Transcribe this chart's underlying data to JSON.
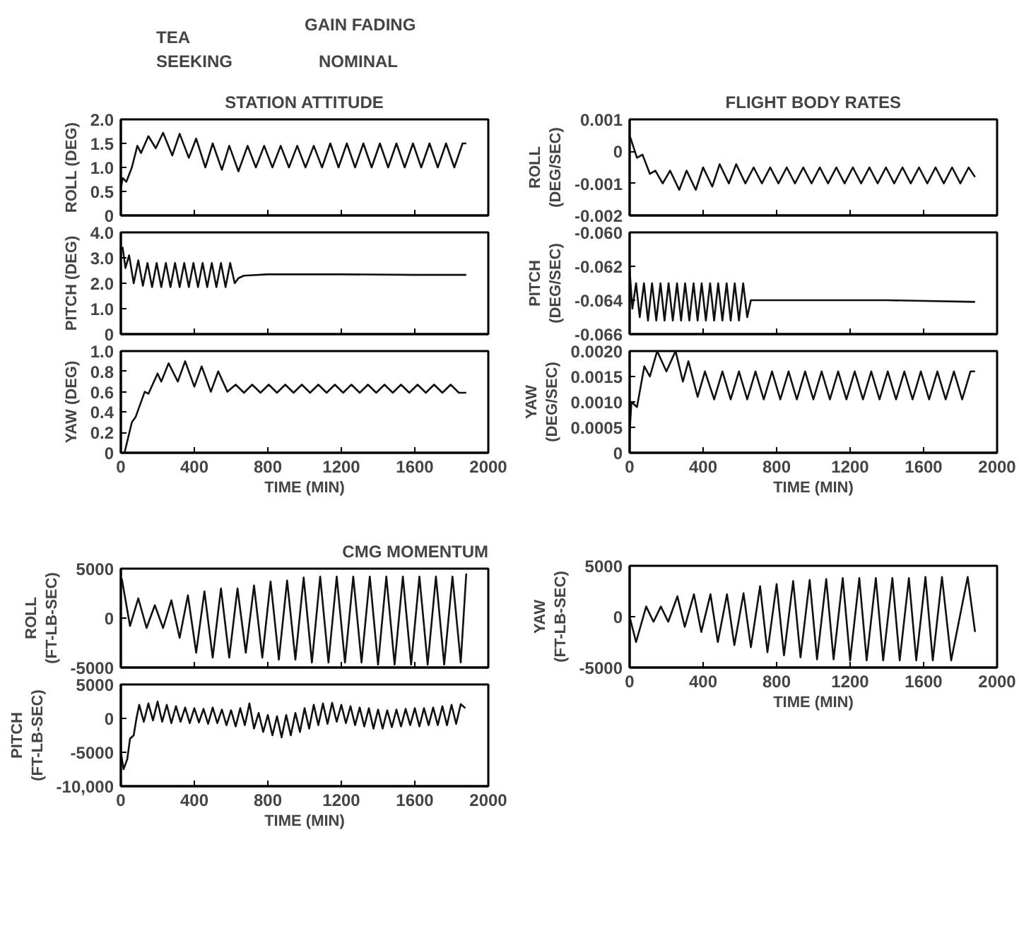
{
  "chart_data": [
    {
      "type": "line",
      "title": "STATION ATTITUDE",
      "ylabel": "ROLL (DEG)",
      "annotations": [
        "TEA\nSEEKING",
        "GAIN FADING",
        "NOMINAL"
      ],
      "xlim": [
        0,
        2000
      ],
      "xticks": [
        0,
        400,
        800,
        1200,
        1600,
        2000
      ],
      "ylim": [
        0,
        2
      ],
      "yticks": [
        0,
        0.5,
        {
          "value": 1,
          "label": "1.0"
        },
        1.5,
        {
          "value": 2,
          "label": "2.0"
        }
      ],
      "tick_labels": "y",
      "grid": false,
      "x": [
        0,
        10,
        30,
        60,
        90,
        110,
        150,
        190,
        230,
        280,
        320,
        370,
        410,
        460,
        500,
        550,
        590,
        640,
        690,
        735,
        780,
        825,
        870,
        915,
        960,
        1005,
        1050,
        1095,
        1140,
        1185,
        1230,
        1275,
        1320,
        1365,
        1410,
        1455,
        1500,
        1545,
        1590,
        1635,
        1680,
        1725,
        1770,
        1815,
        1860,
        1880
      ],
      "series": [
        {
          "color": "#111111",
          "values": [
            0.55,
            0.78,
            0.7,
            1.0,
            1.45,
            1.3,
            1.65,
            1.4,
            1.72,
            1.25,
            1.7,
            1.2,
            1.6,
            1.0,
            1.5,
            0.95,
            1.45,
            0.92,
            1.45,
            1.0,
            1.45,
            1.0,
            1.45,
            1.0,
            1.45,
            1.0,
            1.45,
            1.0,
            1.5,
            1.0,
            1.5,
            1.0,
            1.5,
            1.0,
            1.5,
            1.0,
            1.5,
            1.0,
            1.5,
            1.0,
            1.5,
            1.0,
            1.5,
            1.0,
            1.5,
            1.5
          ]
        }
      ]
    },
    {
      "type": "line",
      "ylabel": "PITCH (DEG)",
      "xlim": [
        0,
        2000
      ],
      "xticks": [
        0,
        400,
        800,
        1200,
        1600,
        2000
      ],
      "ylim": [
        0,
        4
      ],
      "yticks": [
        0,
        {
          "value": 1,
          "label": "1.0"
        },
        {
          "value": 2,
          "label": "2.0"
        },
        {
          "value": 3,
          "label": "3.0"
        },
        {
          "value": 4,
          "label": "4.0"
        }
      ],
      "tick_labels": "y",
      "x": [
        0,
        10,
        25,
        45,
        70,
        95,
        120,
        145,
        170,
        195,
        220,
        245,
        270,
        295,
        320,
        345,
        370,
        395,
        420,
        445,
        470,
        495,
        520,
        545,
        570,
        595,
        620,
        640,
        670,
        800,
        1200,
        1600,
        1880
      ],
      "series": [
        {
          "color": "#111111",
          "values": [
            3.3,
            3.4,
            2.6,
            3.1,
            2.0,
            2.9,
            1.9,
            2.8,
            1.85,
            2.8,
            1.85,
            2.8,
            1.85,
            2.8,
            1.85,
            2.8,
            1.85,
            2.8,
            1.85,
            2.8,
            1.85,
            2.8,
            1.85,
            2.8,
            1.85,
            2.8,
            2.0,
            2.2,
            2.3,
            2.35,
            2.35,
            2.33,
            2.33
          ]
        }
      ]
    },
    {
      "type": "line",
      "ylabel": "YAW (DEG)",
      "xlabel": "TIME (MIN)",
      "xlim": [
        0,
        2000
      ],
      "xticks": [
        0,
        400,
        800,
        1200,
        1600,
        2000
      ],
      "ylim": [
        0,
        1
      ],
      "yticks": [
        0,
        0.2,
        0.4,
        0.6,
        0.8,
        {
          "value": 1,
          "label": "1.0"
        }
      ],
      "x": [
        20,
        60,
        80,
        130,
        150,
        200,
        220,
        260,
        310,
        350,
        400,
        440,
        490,
        530,
        580,
        625,
        670,
        715,
        760,
        805,
        850,
        895,
        940,
        985,
        1030,
        1075,
        1120,
        1165,
        1210,
        1255,
        1300,
        1345,
        1390,
        1435,
        1480,
        1525,
        1570,
        1615,
        1660,
        1705,
        1750,
        1795,
        1840,
        1880
      ],
      "series": [
        {
          "color": "#111111",
          "values": [
            0,
            0.3,
            0.35,
            0.6,
            0.58,
            0.78,
            0.7,
            0.88,
            0.7,
            0.9,
            0.65,
            0.85,
            0.6,
            0.8,
            0.6,
            0.67,
            0.59,
            0.67,
            0.59,
            0.67,
            0.59,
            0.67,
            0.59,
            0.67,
            0.59,
            0.67,
            0.59,
            0.67,
            0.59,
            0.67,
            0.59,
            0.67,
            0.59,
            0.67,
            0.59,
            0.67,
            0.59,
            0.67,
            0.59,
            0.67,
            0.59,
            0.67,
            0.59,
            0.59
          ]
        }
      ]
    },
    {
      "type": "line",
      "title": "FLIGHT BODY RATES",
      "ylabel": "ROLL\n(DEG/SEC)",
      "xlim": [
        0,
        2000
      ],
      "xticks": [
        0,
        400,
        800,
        1200,
        1600,
        2000
      ],
      "ylim": [
        -0.002,
        0.001
      ],
      "yticks": [
        0.001,
        0,
        -0.001,
        -0.002
      ],
      "tick_labels": "y",
      "x": [
        0,
        40,
        70,
        110,
        140,
        180,
        220,
        270,
        310,
        360,
        400,
        450,
        490,
        540,
        580,
        630,
        675,
        720,
        765,
        810,
        855,
        900,
        945,
        990,
        1035,
        1080,
        1125,
        1170,
        1215,
        1260,
        1305,
        1350,
        1395,
        1440,
        1485,
        1530,
        1575,
        1620,
        1665,
        1710,
        1755,
        1800,
        1845,
        1880
      ],
      "series": [
        {
          "color": "#111111",
          "values": [
            0.0005,
            -0.0002,
            -0.0001,
            -0.0007,
            -0.0006,
            -0.001,
            -0.0006,
            -0.0012,
            -0.0006,
            -0.0012,
            -0.0005,
            -0.0011,
            -0.0004,
            -0.001,
            -0.0004,
            -0.001,
            -0.0005,
            -0.001,
            -0.0005,
            -0.001,
            -0.0005,
            -0.001,
            -0.0005,
            -0.001,
            -0.0005,
            -0.001,
            -0.0005,
            -0.001,
            -0.0005,
            -0.001,
            -0.0005,
            -0.001,
            -0.0005,
            -0.001,
            -0.0005,
            -0.001,
            -0.0005,
            -0.001,
            -0.0005,
            -0.001,
            -0.0005,
            -0.001,
            -0.0005,
            -0.0008
          ]
        }
      ]
    },
    {
      "type": "line",
      "ylabel": "PITCH\n(DEG/SEC)",
      "xlim": [
        0,
        2000
      ],
      "xticks": [
        0,
        400,
        800,
        1200,
        1600,
        2000
      ],
      "ylim": [
        -0.066,
        -0.06
      ],
      "yticks": [
        {
          "value": -0.06,
          "label": "-0.060"
        },
        -0.062,
        -0.064,
        -0.066
      ],
      "tick_labels": "y",
      "x": [
        0,
        15,
        35,
        55,
        78,
        100,
        122,
        145,
        168,
        190,
        212,
        235,
        258,
        280,
        302,
        325,
        348,
        370,
        392,
        415,
        438,
        460,
        482,
        505,
        528,
        550,
        572,
        595,
        618,
        640,
        660,
        1000,
        1400,
        1880
      ],
      "series": [
        {
          "color": "#111111",
          "values": [
            -0.0622,
            -0.0645,
            -0.063,
            -0.065,
            -0.063,
            -0.0652,
            -0.063,
            -0.0652,
            -0.063,
            -0.0652,
            -0.063,
            -0.0652,
            -0.063,
            -0.0652,
            -0.063,
            -0.0652,
            -0.063,
            -0.0652,
            -0.063,
            -0.0652,
            -0.063,
            -0.0652,
            -0.063,
            -0.0652,
            -0.063,
            -0.0652,
            -0.063,
            -0.0652,
            -0.063,
            -0.065,
            -0.064,
            -0.064,
            -0.064,
            -0.0641
          ]
        }
      ]
    },
    {
      "type": "line",
      "ylabel": "YAW\n(DEG/SEC)",
      "xlabel": "TIME (MIN)",
      "xlim": [
        0,
        2000
      ],
      "xticks": [
        0,
        400,
        800,
        1200,
        1600,
        2000
      ],
      "ylim": [
        0,
        0.002
      ],
      "yticks": [
        0,
        0.0005,
        {
          "value": 0.001,
          "label": "0.0010"
        },
        0.0015,
        {
          "value": 0.002,
          "label": "0.0020"
        }
      ],
      "x": [
        0,
        10,
        40,
        80,
        110,
        150,
        200,
        250,
        290,
        320,
        370,
        410,
        460,
        505,
        550,
        595,
        640,
        685,
        730,
        775,
        820,
        865,
        910,
        955,
        1000,
        1045,
        1090,
        1135,
        1180,
        1225,
        1270,
        1315,
        1360,
        1405,
        1450,
        1495,
        1540,
        1585,
        1630,
        1675,
        1720,
        1765,
        1810,
        1855,
        1880
      ],
      "series": [
        {
          "color": "#111111",
          "values": [
            0.0004,
            0.001,
            0.0009,
            0.0017,
            0.0015,
            0.002,
            0.0016,
            0.002,
            0.0014,
            0.0018,
            0.0011,
            0.0016,
            0.00105,
            0.0016,
            0.00105,
            0.0016,
            0.00105,
            0.0016,
            0.00105,
            0.0016,
            0.00105,
            0.0016,
            0.00105,
            0.0016,
            0.00105,
            0.0016,
            0.00105,
            0.0016,
            0.00105,
            0.0016,
            0.00105,
            0.0016,
            0.00105,
            0.0016,
            0.00105,
            0.0016,
            0.00105,
            0.0016,
            0.00105,
            0.0016,
            0.00105,
            0.0016,
            0.00105,
            0.0016,
            0.0016
          ]
        }
      ]
    },
    {
      "type": "line",
      "title": "CMG MOMENTUM",
      "ylabel": "ROLL\n(FT-LB-SEC)",
      "xlim": [
        0,
        2000
      ],
      "xticks": [
        0,
        400,
        800,
        1200,
        1600,
        2000
      ],
      "ylim": [
        -5000,
        5000
      ],
      "yticks": [
        5000,
        0,
        -5000
      ],
      "tick_labels": "y",
      "x": [
        5,
        50,
        95,
        140,
        185,
        230,
        275,
        320,
        365,
        410,
        455,
        500,
        545,
        590,
        635,
        680,
        725,
        770,
        815,
        860,
        905,
        950,
        995,
        1040,
        1085,
        1130,
        1175,
        1220,
        1265,
        1310,
        1355,
        1400,
        1445,
        1490,
        1535,
        1580,
        1625,
        1670,
        1715,
        1760,
        1805,
        1850,
        1880
      ],
      "series": [
        {
          "color": "#111111",
          "values": [
            4000,
            -800,
            2000,
            -1000,
            1300,
            -1000,
            1800,
            -2000,
            2300,
            -3500,
            2700,
            -4000,
            3000,
            -4000,
            3000,
            -3500,
            3300,
            -4000,
            3700,
            -4200,
            3800,
            -4200,
            4100,
            -4500,
            4200,
            -4500,
            4200,
            -4500,
            4200,
            -4500,
            4200,
            -4700,
            4200,
            -4700,
            4200,
            -4700,
            4200,
            -4700,
            4200,
            -4700,
            4200,
            -4500,
            4500
          ]
        }
      ]
    },
    {
      "type": "line",
      "ylabel": "PITCH\n(FT-LB-SEC)",
      "xlabel": "TIME (MIN)",
      "xlim": [
        0,
        2000
      ],
      "xticks": [
        0,
        400,
        800,
        1200,
        1600,
        2000
      ],
      "ylim": [
        -10000,
        5000
      ],
      "yticks": [
        5000,
        0,
        -5000,
        {
          "value": -10000,
          "label": "-10,000"
        }
      ],
      "x": [
        0,
        15,
        35,
        50,
        70,
        85,
        100,
        125,
        150,
        175,
        200,
        225,
        250,
        275,
        300,
        325,
        350,
        375,
        400,
        425,
        450,
        475,
        500,
        525,
        550,
        575,
        600,
        625,
        650,
        675,
        700,
        725,
        750,
        775,
        800,
        825,
        850,
        875,
        900,
        925,
        950,
        975,
        1000,
        1025,
        1050,
        1075,
        1100,
        1125,
        1150,
        1175,
        1200,
        1225,
        1250,
        1275,
        1300,
        1325,
        1350,
        1375,
        1400,
        1425,
        1450,
        1475,
        1500,
        1525,
        1550,
        1575,
        1600,
        1625,
        1650,
        1675,
        1700,
        1725,
        1750,
        1775,
        1800,
        1825,
        1850,
        1875
      ],
      "series": [
        {
          "color": "#111111",
          "values": [
            -5000,
            -7500,
            -6000,
            -3000,
            -2500,
            0,
            2000,
            -500,
            2200,
            -300,
            2500,
            -500,
            2000,
            -700,
            1800,
            -500,
            1600,
            -700,
            1500,
            -600,
            1400,
            -800,
            1600,
            -700,
            1300,
            -1000,
            1200,
            -1200,
            1500,
            -1000,
            2200,
            -1500,
            800,
            -2000,
            500,
            -2500,
            300,
            -2800,
            500,
            -2500,
            800,
            -2000,
            1500,
            -1500,
            2000,
            -1000,
            2200,
            -800,
            2300,
            -500,
            2000,
            -700,
            1800,
            -1000,
            1600,
            -1200,
            1500,
            -1500,
            1300,
            -1500,
            1200,
            -1300,
            1300,
            -1200,
            1400,
            -1000,
            1500,
            -1200,
            1500,
            -1000,
            1600,
            -1000,
            1800,
            -1000,
            2000,
            -800,
            2100,
            1500
          ]
        }
      ]
    },
    {
      "type": "line",
      "ylabel": "YAW\n(FT-LB-SEC)",
      "xlabel": "TIME (MIN)",
      "xlim": [
        0,
        2000
      ],
      "xticks": [
        0,
        400,
        800,
        1200,
        1600,
        2000
      ],
      "ylim": [
        -5000,
        5000
      ],
      "yticks": [
        5000,
        0,
        -5000
      ],
      "x": [
        0,
        35,
        90,
        130,
        170,
        210,
        260,
        300,
        350,
        390,
        440,
        480,
        530,
        570,
        620,
        660,
        710,
        750,
        800,
        840,
        890,
        930,
        980,
        1020,
        1070,
        1110,
        1160,
        1200,
        1250,
        1290,
        1340,
        1380,
        1430,
        1470,
        1520,
        1560,
        1610,
        1650,
        1700,
        1750,
        1840,
        1880
      ],
      "series": [
        {
          "color": "#111111",
          "values": [
            0,
            -2500,
            1000,
            -500,
            1000,
            -500,
            2000,
            -1000,
            2200,
            -1500,
            2200,
            -2500,
            2200,
            -2800,
            2300,
            -3000,
            3000,
            -3500,
            3200,
            -3800,
            3500,
            -4000,
            3600,
            -4200,
            3700,
            -4200,
            3800,
            -4300,
            3800,
            -4300,
            3800,
            -4300,
            3800,
            -4300,
            3800,
            -4300,
            3900,
            -4300,
            3900,
            -4300,
            3900,
            -1500
          ]
        }
      ]
    }
  ]
}
